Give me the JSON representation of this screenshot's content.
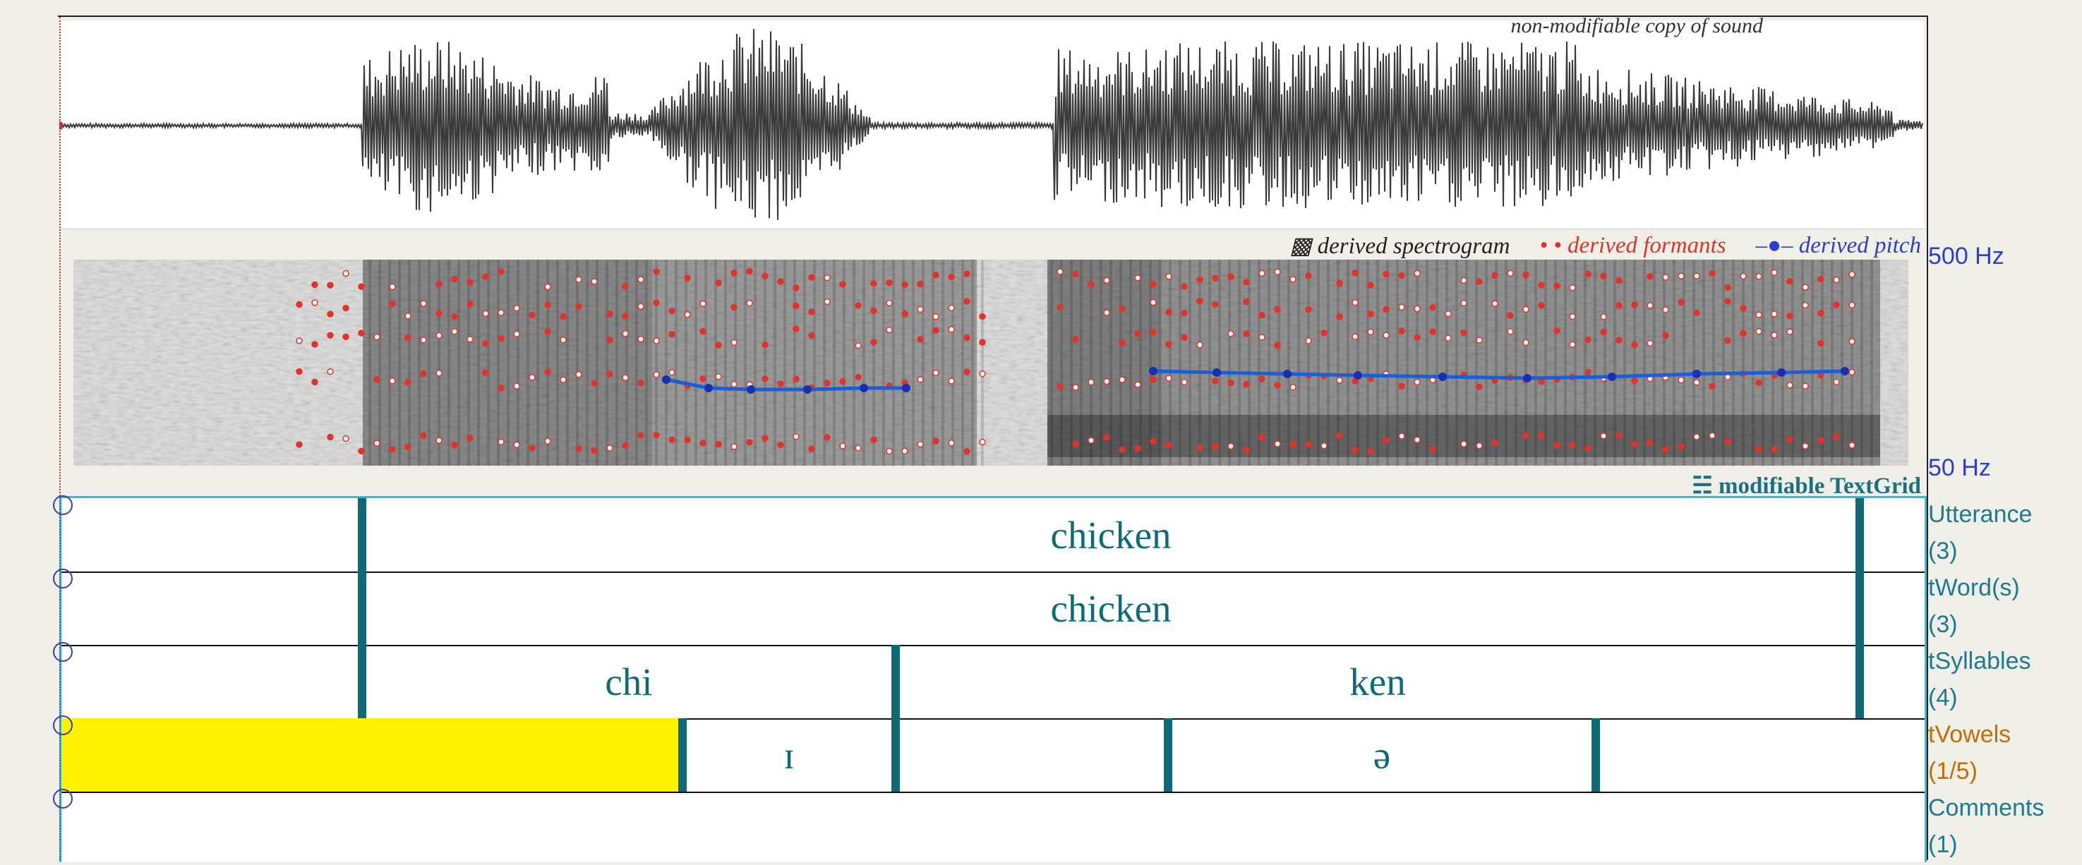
{
  "sound": {
    "label": "non-modifiable copy of sound"
  },
  "legend": {
    "spectrogram": "▩ derived spectrogram",
    "formants": "• • derived formants",
    "pitch": "–●– derived pitch"
  },
  "pitch_axis": {
    "top": "500 Hz",
    "bottom": "50 Hz"
  },
  "textgrid": {
    "title": "☵ modifiable TextGrid",
    "tiers": [
      {
        "name": "Utterance",
        "count": "(3)",
        "intervals": [
          "",
          "chicken",
          ""
        ]
      },
      {
        "name": "tWord(s)",
        "count": "(3)",
        "intervals": [
          "",
          "chicken",
          ""
        ]
      },
      {
        "name": "tSyllables",
        "count": "(4)",
        "intervals": [
          "",
          "chi",
          "ken",
          ""
        ]
      },
      {
        "name": "tVowels",
        "count": "(1/5)",
        "intervals": [
          "",
          "ɪ",
          "",
          "ə",
          ""
        ]
      },
      {
        "name": "Comments",
        "count": "(1)",
        "intervals": [
          ""
        ]
      }
    ]
  },
  "colors": {
    "waveform": "#3a3a3a",
    "formants": "#e2332a",
    "pitch": "#1a5fd8",
    "selection": "#fff200",
    "textgrid_border": "#1fc1e6",
    "boundary": "#0f6a78",
    "active_tier": "#c07000"
  }
}
